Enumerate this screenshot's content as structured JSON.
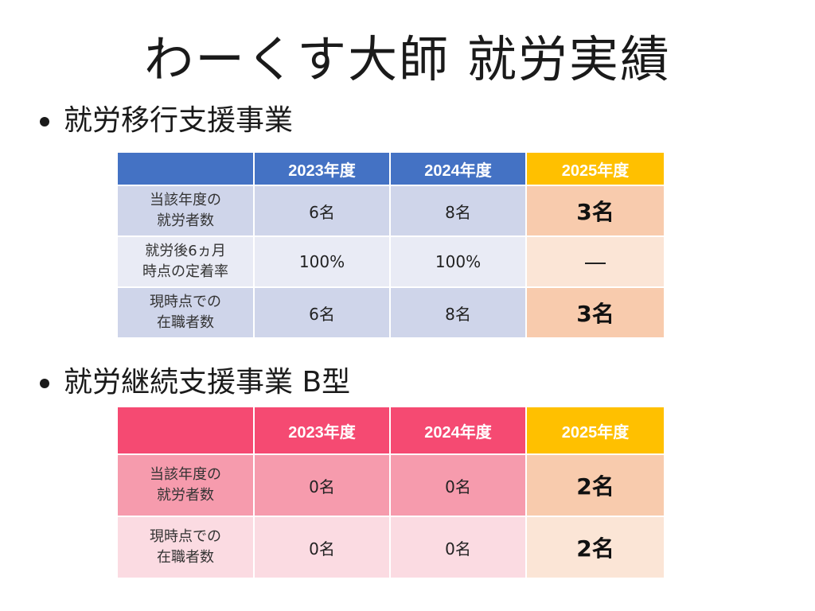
{
  "title": "わーくす大師  就労実績",
  "section1": {
    "heading": "就労移行支援事業",
    "columns": [
      "2023年度",
      "2024年度",
      "2025年度"
    ],
    "rows": [
      {
        "label_line1": "当該年度の",
        "label_line2": "就労者数",
        "values": [
          "6名",
          "8名",
          "3名"
        ]
      },
      {
        "label_line1": "就労後6ヵ月",
        "label_line2": "時点の定着率",
        "values": [
          "100%",
          "100%",
          "—"
        ]
      },
      {
        "label_line1": "現時点での",
        "label_line2": "在職者数",
        "values": [
          "6名",
          "8名",
          "3名"
        ]
      }
    ]
  },
  "section2": {
    "heading": "就労継続支援事業 B型",
    "columns": [
      "2023年度",
      "2024年度",
      "2025年度"
    ],
    "rows": [
      {
        "label_line1": "当該年度の",
        "label_line2": "就労者数",
        "values": [
          "0名",
          "0名",
          "2名"
        ]
      },
      {
        "label_line1": "現時点での",
        "label_line2": "在職者数",
        "values": [
          "0名",
          "0名",
          "2名"
        ]
      }
    ]
  },
  "colors": {
    "blue_header": "#4472c4",
    "pink_header": "#f54a72",
    "gold_header": "#ffc000",
    "highlight_cell": "#f8cbad"
  }
}
